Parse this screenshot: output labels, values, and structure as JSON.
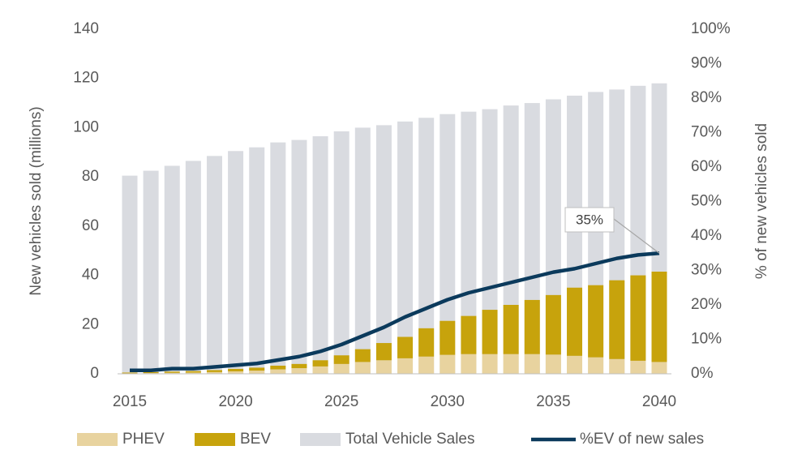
{
  "chart_data": {
    "type": "bar-line",
    "ylabel": "New vehicles sold (millions)",
    "y2label": "% of new vehicles sold",
    "categories": [
      "2015",
      null,
      null,
      null,
      null,
      "2020",
      null,
      null,
      null,
      null,
      "2025",
      null,
      null,
      null,
      null,
      "2030",
      null,
      null,
      null,
      null,
      "2035",
      null,
      null,
      null,
      null,
      "2040"
    ],
    "ylim": [
      0,
      140
    ],
    "yticks": [
      0,
      20,
      40,
      60,
      80,
      100,
      120,
      140
    ],
    "y2lim": [
      0,
      100
    ],
    "y2ticks": [
      {
        "value": 0,
        "label": "0%"
      },
      {
        "value": 10,
        "label": "10%"
      },
      {
        "value": 20,
        "label": "20%"
      },
      {
        "value": 30,
        "label": "30%"
      },
      {
        "value": 40,
        "label": "40%"
      },
      {
        "value": 50,
        "label": "50%"
      },
      {
        "value": 60,
        "label": "60%"
      },
      {
        "value": 70,
        "label": "70%"
      },
      {
        "value": 80,
        "label": "80%"
      },
      {
        "value": 90,
        "label": "90%"
      },
      {
        "value": 100,
        "label": "100%"
      }
    ],
    "legend": "bottom",
    "series": [
      {
        "name": "PHEV",
        "color": "#e8d39f",
        "kind": "stack",
        "values": [
          0.2,
          0.3,
          0.4,
          0.5,
          0.7,
          1,
          1.3,
          1.8,
          2.3,
          3,
          4,
          4.8,
          5.5,
          6.3,
          7,
          7.7,
          8,
          8,
          8,
          8,
          7.8,
          7.3,
          6.7,
          6,
          5.3,
          4.8
        ]
      },
      {
        "name": "BEV",
        "color": "#c7a30c",
        "kind": "stack",
        "values": [
          0.3,
          0.4,
          0.5,
          0.6,
          0.8,
          1,
          1.2,
          1.5,
          1.7,
          2.5,
          3.5,
          5.2,
          7,
          8.7,
          11.5,
          13.8,
          15.5,
          18,
          20,
          22,
          24.2,
          27.7,
          29.3,
          32,
          34.7,
          36.7
        ]
      },
      {
        "name": "Total Vehicle Sales",
        "color": "#d9dbe0",
        "kind": "total",
        "values": [
          80.5,
          82.5,
          84.5,
          86.5,
          88.5,
          90.5,
          92,
          94,
          95,
          96.5,
          98.5,
          100,
          101,
          102.5,
          104,
          105.5,
          106.5,
          107.5,
          109,
          110,
          111.5,
          113,
          114.5,
          115.5,
          117,
          118
        ]
      },
      {
        "name": "%EV of new sales",
        "color": "#0b3a5c",
        "kind": "line",
        "axis": "y2",
        "values": [
          1,
          1,
          1.5,
          1.5,
          2,
          2.5,
          3,
          4,
          5,
          6.5,
          8.5,
          11,
          13.5,
          16.5,
          19,
          21.5,
          23.5,
          25,
          26.5,
          28,
          29.5,
          30.5,
          32,
          33.5,
          34.5,
          35
        ],
        "value_labels": [
          null,
          null,
          null,
          null,
          null,
          null,
          null,
          null,
          null,
          null,
          null,
          null,
          null,
          null,
          null,
          null,
          null,
          null,
          null,
          null,
          null,
          null,
          null,
          null,
          null,
          "35%"
        ]
      }
    ]
  }
}
